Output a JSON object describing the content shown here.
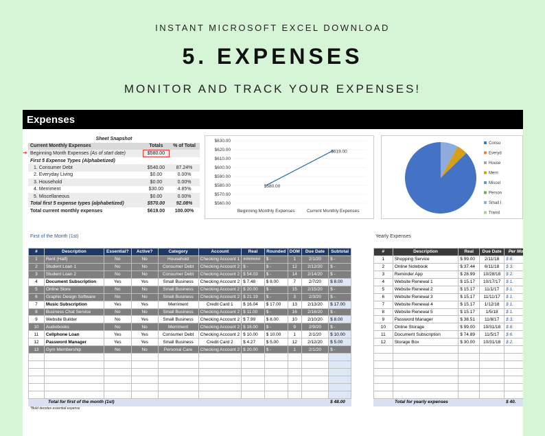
{
  "header": {
    "top": "INSTANT MICROSOFT EXCEL DOWNLOAD",
    "title": "5. EXPENSES",
    "subtitle": "MONITOR AND TRACK YOUR EXPENSES!"
  },
  "sheet": {
    "title": "Expenses"
  },
  "snapshot": {
    "title": "Sheet Snapshot",
    "headers": [
      "Current Monthly Expenses",
      "Totals",
      "% of Total"
    ],
    "beginning_label": "Beginning Month Expenses",
    "beginning_note": "(As of start date)",
    "beginning_value": "$580.00",
    "types_label": "First 5 Expense Types (Alphabetized)",
    "rows": [
      {
        "label": "1. Consumer Debt",
        "total": "$540.00",
        "pct": "87.24%"
      },
      {
        "label": "2. Everyday Living",
        "total": "$0.00",
        "pct": "0.00%"
      },
      {
        "label": "3. Household",
        "total": "$0.00",
        "pct": "0.00%"
      },
      {
        "label": "4. Merriment",
        "total": "$30.00",
        "pct": "4.85%"
      },
      {
        "label": "5. Miscellaneous",
        "total": "$0.00",
        "pct": "0.00%"
      }
    ],
    "total5": {
      "label": "Total first 5 expense types (alphabetized)",
      "total": "$570.00",
      "pct": "92.08%"
    },
    "current": {
      "label": "Total current monthly expenses",
      "total": "$619.00",
      "pct": "100.00%"
    }
  },
  "chart_data": [
    {
      "type": "line",
      "categories": [
        "Beginning Monthly Expenses",
        "Current Monthly Expenses"
      ],
      "series": [
        {
          "values": [
            580,
            619
          ]
        }
      ],
      "data_labels": [
        "$580.00",
        "$619.00"
      ],
      "yticks": [
        "$630.00",
        "$620.00",
        "$610.00",
        "$600.00",
        "$590.00",
        "$580.00",
        "$570.00",
        "$560.00"
      ],
      "ylim": [
        560,
        630
      ],
      "color": "#2e75b6"
    },
    {
      "type": "pie",
      "slices": [
        {
          "label": "Consu",
          "value": 87.24,
          "color": "#4472c4"
        },
        {
          "label": "Everyd",
          "value": 0,
          "color": "#ed7d31"
        },
        {
          "label": "House",
          "value": 0,
          "color": "#a5a5a5"
        },
        {
          "label": "Merri",
          "value": 4.85,
          "color": "#d4a017"
        },
        {
          "label": "Miscel",
          "value": 0,
          "color": "#5b9bd5"
        },
        {
          "label": "Person",
          "value": 0,
          "color": "#70ad47"
        },
        {
          "label": "Small I",
          "value": 7.91,
          "color": "#8faadc"
        },
        {
          "label": "Transl",
          "value": 0,
          "color": "#a9d18e"
        }
      ]
    }
  ],
  "first": {
    "section": "First of the Month (1st)",
    "headers": [
      "#",
      "Description",
      "Essential?",
      "Active?",
      "Category",
      "Account",
      "Real",
      "Rounded",
      "DOM",
      "Due Date",
      "Subtotal"
    ],
    "rows": [
      [
        "1",
        "Rent (Half)",
        "No",
        "No",
        "Household",
        "Checking Account 1",
        "#######",
        "$   -",
        "1",
        "2/1/20",
        "$   -"
      ],
      [
        "2",
        "Student Loan 1",
        "No",
        "No",
        "Consumer Debt",
        "Checking Account 2",
        "$   -",
        "$   -",
        "12",
        "2/12/20",
        "$   -"
      ],
      [
        "3",
        "Student Loan 2",
        "No",
        "No",
        "Consumer Debt",
        "Checking Account 2",
        "$ 54.03",
        "$   -",
        "14",
        "2/14/20",
        "$   -"
      ],
      [
        "4",
        "Document Subscription",
        "Yes",
        "Yes",
        "Small Business",
        "Checking Account 2",
        "$  7.48",
        "$  8.00",
        "7",
        "2/7/20",
        "$  8.00"
      ],
      [
        "5",
        "Online Store",
        "No",
        "No",
        "Small Business",
        "Checking Account 2",
        "$ 20.00",
        "$   -",
        "15",
        "2/15/20",
        "$   -"
      ],
      [
        "6",
        "Graphic Design Software",
        "No",
        "No",
        "Small Business",
        "Checking Account 2",
        "$ 21.19",
        "$   -",
        "3",
        "2/3/20",
        "$   -"
      ],
      [
        "7",
        "Music Subscription",
        "Yes",
        "Yes",
        "Merriment",
        "Credit Card 1",
        "$ 16.04",
        "$ 17.00",
        "13",
        "2/13/20",
        "$ 17.00"
      ],
      [
        "8",
        "Business Chat Service",
        "No",
        "No",
        "Small Business",
        "Checking Account 2",
        "$ 11.00",
        "$   -",
        "16",
        "2/16/20",
        "$   -"
      ],
      [
        "9",
        "Website Builder",
        "No",
        "Yes",
        "Small Business",
        "Checking Account 2",
        "$  7.99",
        "$  8.00",
        "10",
        "2/10/20",
        "$  8.00"
      ],
      [
        "10",
        "Audiobooks",
        "No",
        "No",
        "Merriment",
        "Checking Account 2",
        "$ 16.00",
        "$   -",
        "9",
        "2/9/20",
        "$   -"
      ],
      [
        "11",
        "Cellphone Loan",
        "Yes",
        "Yes",
        "Consumer Debt",
        "Checking Account 2",
        "$ 10.00",
        "$ 10.00",
        "1",
        "2/1/20",
        "$ 10.00"
      ],
      [
        "12",
        "Password Manager",
        "Yes",
        "Yes",
        "Small Business",
        "Credit Card 2",
        "$  4.27",
        "$  5.00",
        "12",
        "2/12/20",
        "$  5.00"
      ],
      [
        "13",
        "Gym Membership",
        "No",
        "No",
        "Personal Care",
        "Checking Account 2",
        "$ 20.00",
        "$   -",
        "1",
        "2/1/20",
        "$   -"
      ]
    ],
    "total_label": "Total for first of the month (1st)",
    "total_value": "$ 48.00",
    "note": "*Bold denotes essential expense"
  },
  "yearly": {
    "section": "Yearly Expenses",
    "headers": [
      "#",
      "Description",
      "Real",
      "Due Date",
      "Per Mo"
    ],
    "rows": [
      [
        "1",
        "Shopping Service",
        "$ 99.00",
        "2/11/18",
        "$   8."
      ],
      [
        "2",
        "Online Notebook",
        "$ 37.44",
        "6/11/18",
        "$   3."
      ],
      [
        "3",
        "Reminder App",
        "$ 28.99",
        "10/28/18",
        "$   2."
      ],
      [
        "4",
        "Website Renewal 1",
        "$ 15.17",
        "10/17/17",
        "$   1."
      ],
      [
        "5",
        "Website Renewal 2",
        "$ 15.17",
        "11/1/17",
        "$   1."
      ],
      [
        "6",
        "Website Renewal 3",
        "$ 15.17",
        "11/11/17",
        "$   1."
      ],
      [
        "7",
        "Website Renewal 4",
        "$ 15.17",
        "1/12/18",
        "$   1."
      ],
      [
        "8",
        "Website Renewal 5",
        "$ 15.17",
        "1/5/18",
        "$   1."
      ],
      [
        "9",
        "Password Manager",
        "$ 38.51",
        "11/8/17",
        "$   3."
      ],
      [
        "10",
        "Online Storage",
        "$ 99.00",
        "10/31/18",
        "$   8."
      ],
      [
        "11",
        "Document Subscription",
        "$ 74.89",
        "11/5/17",
        "$   6."
      ],
      [
        "12",
        "Storage Box",
        "$ 30.00",
        "10/31/18",
        "$   2."
      ]
    ],
    "total_label": "Total for yearly expenses",
    "total_value": "$  40."
  }
}
